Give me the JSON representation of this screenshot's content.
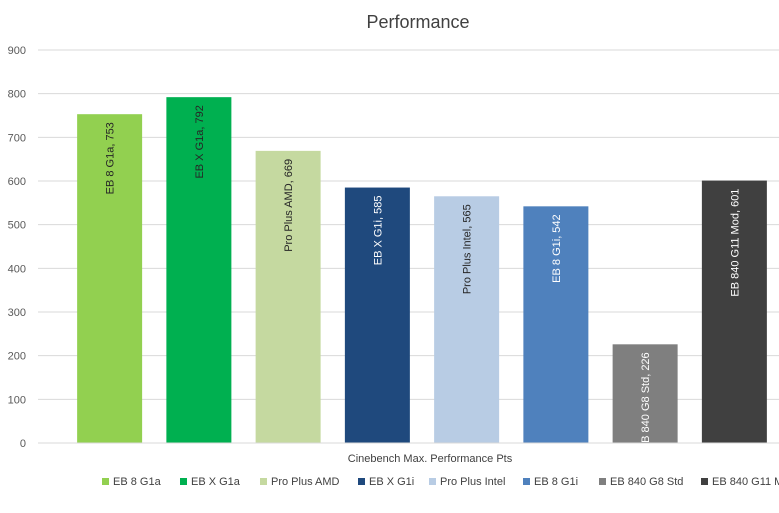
{
  "chart_data": {
    "type": "bar",
    "title": "Performance",
    "xlabel": "Cinebench Max. Performance Pts",
    "ylabel": "",
    "ylim": [
      0,
      900
    ],
    "yticks": [
      0,
      100,
      200,
      300,
      400,
      500,
      600,
      700,
      800,
      900
    ],
    "grid": true,
    "legend_position": "bottom",
    "series": [
      {
        "name": "EB 8 G1a",
        "value": 753,
        "label": "EB 8 G1a, 753",
        "color": "#92D050",
        "label_color": "#262626"
      },
      {
        "name": "EB X G1a",
        "value": 792,
        "label": "EB X G1a, 792",
        "color": "#00B050",
        "label_color": "#262626"
      },
      {
        "name": "Pro Plus AMD",
        "value": 669,
        "label": "Pro Plus AMD, 669",
        "color": "#C5D9A0",
        "label_color": "#262626"
      },
      {
        "name": "EB X G1i",
        "value": 585,
        "label": "EB X G1i, 585",
        "color": "#1F497D",
        "label_color": "#ffffff"
      },
      {
        "name": "Pro Plus Intel",
        "value": 565,
        "label": "Pro Plus Intel, 565",
        "color": "#B8CCE4",
        "label_color": "#262626"
      },
      {
        "name": "EB 8 G1i",
        "value": 542,
        "label": "EB 8 G1i, 542",
        "color": "#4F81BD",
        "label_color": "#ffffff"
      },
      {
        "name": "EB 840 G8 Std",
        "value": 226,
        "label": "EB 840 G8 Std, 226",
        "color": "#7F7F7F",
        "label_color": "#ffffff"
      },
      {
        "name": "EB 840 G11 Mod",
        "value": 601,
        "label": "EB 840 G11 Mod, 601",
        "color": "#404040",
        "label_color": "#ffffff"
      }
    ]
  }
}
